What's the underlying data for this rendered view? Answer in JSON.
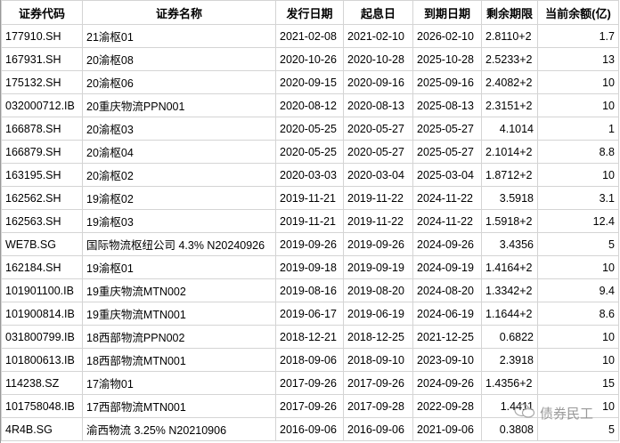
{
  "table": {
    "headers": [
      "证券代码",
      "证券名称",
      "发行日期",
      "起息日",
      "到期日期",
      "剩余期限",
      "当前余额(亿)"
    ],
    "rows": [
      [
        "177910.SH",
        "21渝枢01",
        "2021-02-08",
        "2021-02-10",
        "2026-02-10",
        "2.8110+2",
        "1.7"
      ],
      [
        "167931.SH",
        "20渝枢08",
        "2020-10-26",
        "2020-10-28",
        "2025-10-28",
        "2.5233+2",
        "13"
      ],
      [
        "175132.SH",
        "20渝枢06",
        "2020-09-15",
        "2020-09-16",
        "2025-09-16",
        "2.4082+2",
        "10"
      ],
      [
        "032000712.IB",
        "20重庆物流PPN001",
        "2020-08-12",
        "2020-08-13",
        "2025-08-13",
        "2.3151+2",
        "10"
      ],
      [
        "166878.SH",
        "20渝枢03",
        "2020-05-25",
        "2020-05-27",
        "2025-05-27",
        "4.1014",
        "1"
      ],
      [
        "166879.SH",
        "20渝枢04",
        "2020-05-25",
        "2020-05-27",
        "2025-05-27",
        "2.1014+2",
        "8.8"
      ],
      [
        "163195.SH",
        "20渝枢02",
        "2020-03-03",
        "2020-03-04",
        "2025-03-04",
        "1.8712+2",
        "10"
      ],
      [
        "162562.SH",
        "19渝枢02",
        "2019-11-21",
        "2019-11-22",
        "2024-11-22",
        "3.5918",
        "3.1"
      ],
      [
        "162563.SH",
        "19渝枢03",
        "2019-11-21",
        "2019-11-22",
        "2024-11-22",
        "1.5918+2",
        "12.4"
      ],
      [
        "WE7B.SG",
        "国际物流枢纽公司 4.3% N20240926",
        "2019-09-26",
        "2019-09-26",
        "2024-09-26",
        "3.4356",
        "5"
      ],
      [
        "162184.SH",
        "19渝枢01",
        "2019-09-18",
        "2019-09-19",
        "2024-09-19",
        "1.4164+2",
        "10"
      ],
      [
        "101901100.IB",
        "19重庆物流MTN002",
        "2019-08-16",
        "2019-08-20",
        "2024-08-20",
        "1.3342+2",
        "9.4"
      ],
      [
        "101900814.IB",
        "19重庆物流MTN001",
        "2019-06-17",
        "2019-06-19",
        "2024-06-19",
        "1.1644+2",
        "8.6"
      ],
      [
        "031800799.IB",
        "18西部物流PPN002",
        "2018-12-21",
        "2018-12-25",
        "2021-12-25",
        "0.6822",
        "10"
      ],
      [
        "101800613.IB",
        "18西部物流MTN001",
        "2018-09-06",
        "2018-09-10",
        "2023-09-10",
        "2.3918",
        "10"
      ],
      [
        "114238.SZ",
        "17渝物01",
        "2017-09-26",
        "2017-09-26",
        "2024-09-26",
        "1.4356+2",
        "15"
      ],
      [
        "101758048.IB",
        "17西部物流MTN001",
        "2017-09-26",
        "2017-09-28",
        "2022-09-28",
        "1.4411",
        "10"
      ],
      [
        "4R4B.SG",
        "渝西物流 3.25% N20210906",
        "2016-09-06",
        "2016-09-06",
        "2021-09-06",
        "0.3808",
        "5"
      ]
    ]
  },
  "watermark": {
    "text": "债券民工",
    "icon": "wechat-icon"
  }
}
